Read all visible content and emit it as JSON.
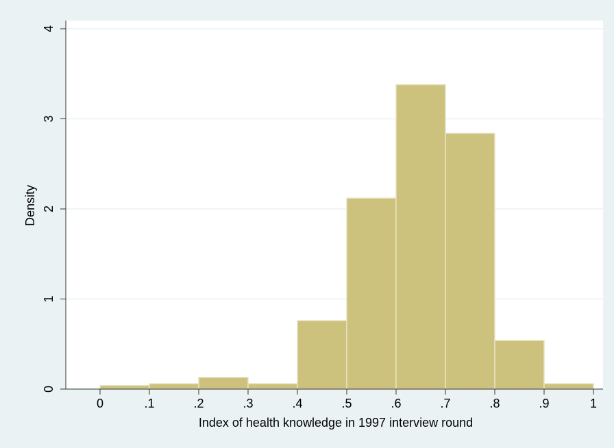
{
  "chart_data": {
    "type": "histogram",
    "x_label": "Index of health knowledge in 1997 interview round",
    "y_label": "Density",
    "bins": [
      0,
      0.1,
      0.2,
      0.3,
      0.4,
      0.5,
      0.6,
      0.7,
      0.8,
      0.9,
      1
    ],
    "values": [
      0.04,
      0.06,
      0.13,
      0.06,
      0.76,
      2.12,
      3.38,
      2.84,
      0.54,
      0.06
    ],
    "color": "#ccc27e",
    "xlim": [
      0,
      1
    ],
    "xticks": [
      {
        "value": 0,
        "label": "0"
      },
      {
        "value": 0.1,
        "label": ".1"
      },
      {
        "value": 0.2,
        "label": ".2"
      },
      {
        "value": 0.3,
        "label": ".3"
      },
      {
        "value": 0.4,
        "label": ".4"
      },
      {
        "value": 0.5,
        "label": ".5"
      },
      {
        "value": 0.6,
        "label": ".6"
      },
      {
        "value": 0.7,
        "label": ".7"
      },
      {
        "value": 0.8,
        "label": ".8"
      },
      {
        "value": 0.9,
        "label": ".9"
      },
      {
        "value": 1,
        "label": "1"
      }
    ],
    "ylim": [
      0,
      4
    ],
    "yticks": [
      0,
      1,
      2,
      3,
      4
    ],
    "grid": true
  }
}
